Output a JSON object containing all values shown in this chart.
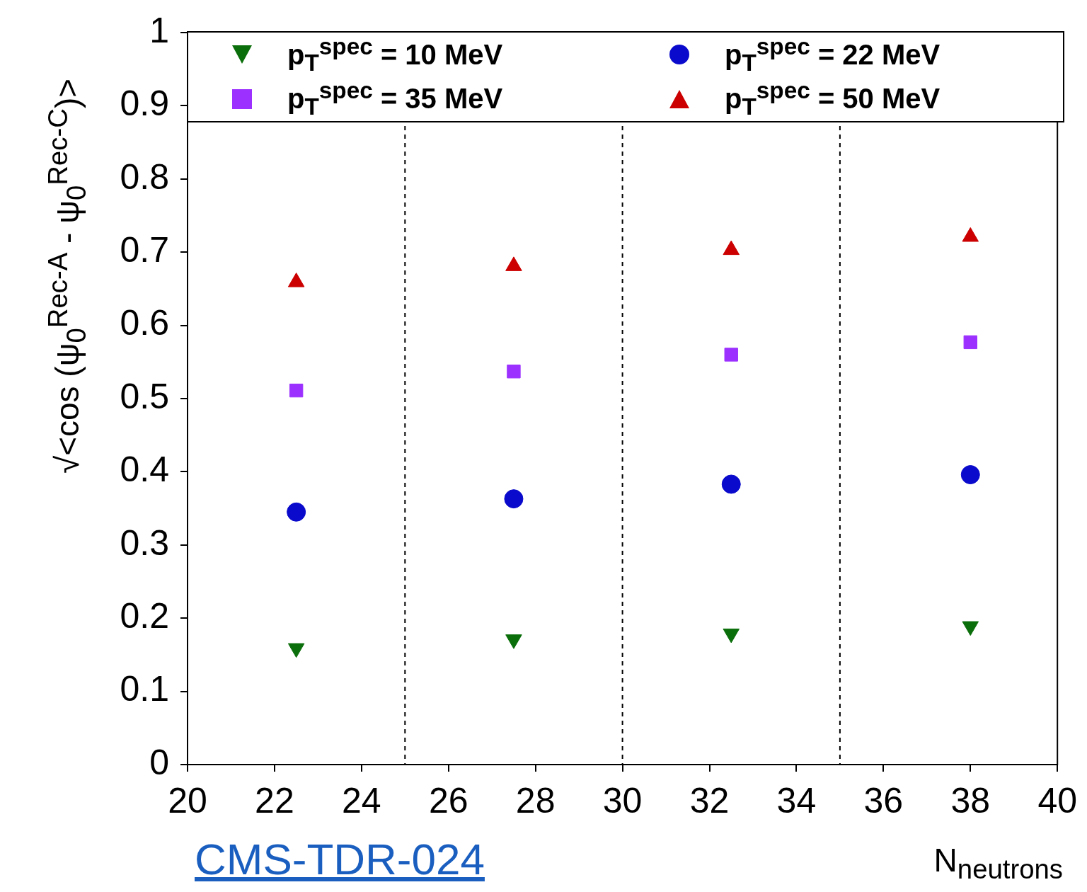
{
  "chart_data": {
    "type": "scatter",
    "xlabel": "N$_{neutrons}$",
    "ylabel": "√<cos (ψ$_{0}$$^{Rec-A}$ - ψ$_{0}$$^{Rec-C}$)>",
    "x": [
      22.5,
      27.5,
      32.5,
      38
    ],
    "series": [
      {
        "name": "p$_{T}$$^{spec}$ = 10 MeV",
        "color": "#0a6e0a",
        "marker": "triangle-down",
        "values": [
          0.159,
          0.171,
          0.179,
          0.189
        ]
      },
      {
        "name": "p$_{T}$$^{spec}$ = 22 MeV",
        "color": "#0a0acc",
        "marker": "circle",
        "values": [
          0.345,
          0.363,
          0.383,
          0.396
        ]
      },
      {
        "name": "p$_{T}$$^{spec}$ = 35 MeV",
        "color": "#9b30ff",
        "marker": "square",
        "values": [
          0.511,
          0.537,
          0.56,
          0.577
        ]
      },
      {
        "name": "p$_{T}$$^{spec}$ = 50 MeV",
        "color": "#cc0000",
        "marker": "triangle",
        "values": [
          0.659,
          0.681,
          0.703,
          0.721
        ]
      }
    ],
    "xlim": [
      20,
      40
    ],
    "xticks": [
      20,
      22,
      24,
      26,
      28,
      30,
      32,
      34,
      36,
      38,
      40
    ],
    "ylim": [
      0,
      1
    ],
    "yticks": [
      0,
      0.1,
      0.2,
      0.3,
      0.4,
      0.5,
      0.6,
      0.7,
      0.8,
      0.9,
      1
    ],
    "ref_lines": [
      {
        "axis": "x",
        "value": 25,
        "color": "#000000",
        "line_style": "dashed"
      },
      {
        "axis": "x",
        "value": 30,
        "color": "#000000",
        "line_style": "dashed"
      },
      {
        "axis": "x",
        "value": 35,
        "color": "#000000",
        "line_style": "dashed"
      }
    ],
    "grid": false,
    "legend": "top",
    "annotations": [
      "CMS-TDR-024"
    ]
  }
}
